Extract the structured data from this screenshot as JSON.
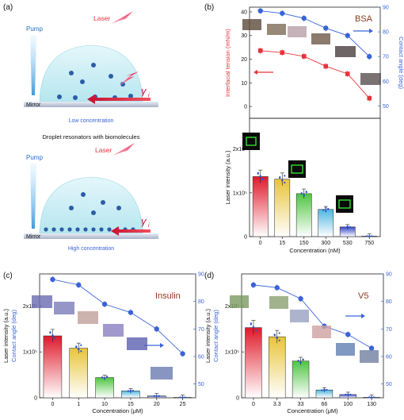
{
  "panels": {
    "a": {
      "label": "(a)",
      "pump_top": "Pump",
      "laser_top": "Laser",
      "gamma_top": "γ",
      "gamma_top_sub": "i",
      "mirror_top": "Mirror",
      "low_conc": "Low concentration",
      "middle_caption": "Droplet resonators with biomolecules",
      "pump_bottom": "Pump",
      "laser_bottom": "Laser",
      "gamma_bottom": "γ",
      "gamma_bottom_sub": "i",
      "mirror_bottom": "Mirror",
      "high_conc": "High concentration"
    },
    "b": {
      "label": "(b)",
      "tag": "BSA"
    },
    "c": {
      "label": "(c)",
      "tag": "Insulin"
    },
    "d": {
      "label": "(d)",
      "tag": "V5"
    }
  },
  "colors": {
    "red": "#e8333b",
    "blue": "#3a63d8",
    "brown": "#8b3a1a",
    "bar_gradients": [
      "#e0192a",
      "#e8c43a",
      "#4fc442",
      "#4fb6e0",
      "#3646c8",
      "#c02bd0"
    ]
  },
  "chart_data": [
    {
      "id": "b-top",
      "type": "line",
      "x": [
        "0",
        "15",
        "150",
        "300",
        "530",
        "750"
      ],
      "series": [
        {
          "values": [
            23.6,
            22.8,
            21.2,
            17.0,
            13.8,
            3.5
          ],
          "axis": "left",
          "color": "#e8333b"
        },
        {
          "values": [
            88.5,
            87.5,
            85.5,
            81.5,
            78.5,
            70.0
          ],
          "axis": "right",
          "color": "#3a63d8"
        }
      ],
      "ylabel": "Interfacial tension (mN/m)",
      "ylim": [
        -5,
        42
      ],
      "yticks": [
        "0",
        "10",
        "20",
        "30",
        "40"
      ],
      "y2label": "Contact angle (deg)",
      "y2lim": [
        45,
        90
      ],
      "y2ticks": [
        "50",
        "60",
        "70",
        "80",
        "90"
      ]
    },
    {
      "id": "b-bottom",
      "type": "bar",
      "categories": [
        "0",
        "15",
        "150",
        "300",
        "530",
        "750"
      ],
      "values": [
        137000,
        131000,
        98000,
        62000,
        22000,
        1000
      ],
      "xlabel": "Concentration (nM)",
      "ylabel": "Laser intensity (a.u.)",
      "ylim": [
        0,
        270000
      ],
      "yticks": [
        "0",
        "1x10⁵",
        "2x10⁵"
      ]
    },
    {
      "id": "c",
      "type": "bar",
      "categories": [
        "0",
        "1",
        "10",
        "15",
        "20",
        "25"
      ],
      "values": [
        135000,
        108000,
        44000,
        15000,
        4000,
        800
      ],
      "line": [
        88,
        86,
        79,
        76,
        70,
        61
      ],
      "xlabel": "Concentration (μM)",
      "ylabel": "Laser intensity (a.u.)",
      "ylim": [
        0,
        270000
      ],
      "yticks": [
        "0",
        "1x10⁵",
        "2x10⁵"
      ],
      "y2label": "Contact angle (deg)",
      "y2lim": [
        45,
        90
      ],
      "y2ticks": [
        "50",
        "60",
        "70",
        "80",
        "90"
      ]
    },
    {
      "id": "d",
      "type": "bar",
      "categories": [
        "0",
        "3.3",
        "33",
        "66",
        "100",
        "130"
      ],
      "values": [
        153000,
        133000,
        80000,
        17000,
        7000,
        1000
      ],
      "line": [
        86,
        85,
        81,
        71,
        68,
        63
      ],
      "xlabel": "Concentration (μM)",
      "ylabel": "Laser intensity (a.u.)",
      "ylim": [
        0,
        270000
      ],
      "yticks": [
        "0",
        "1x10⁵",
        "2x10⁵"
      ],
      "y2label": "Contact angle (deg)",
      "y2lim": [
        45,
        90
      ],
      "y2ticks": [
        "50",
        "60",
        "70",
        "80",
        "90"
      ]
    }
  ]
}
